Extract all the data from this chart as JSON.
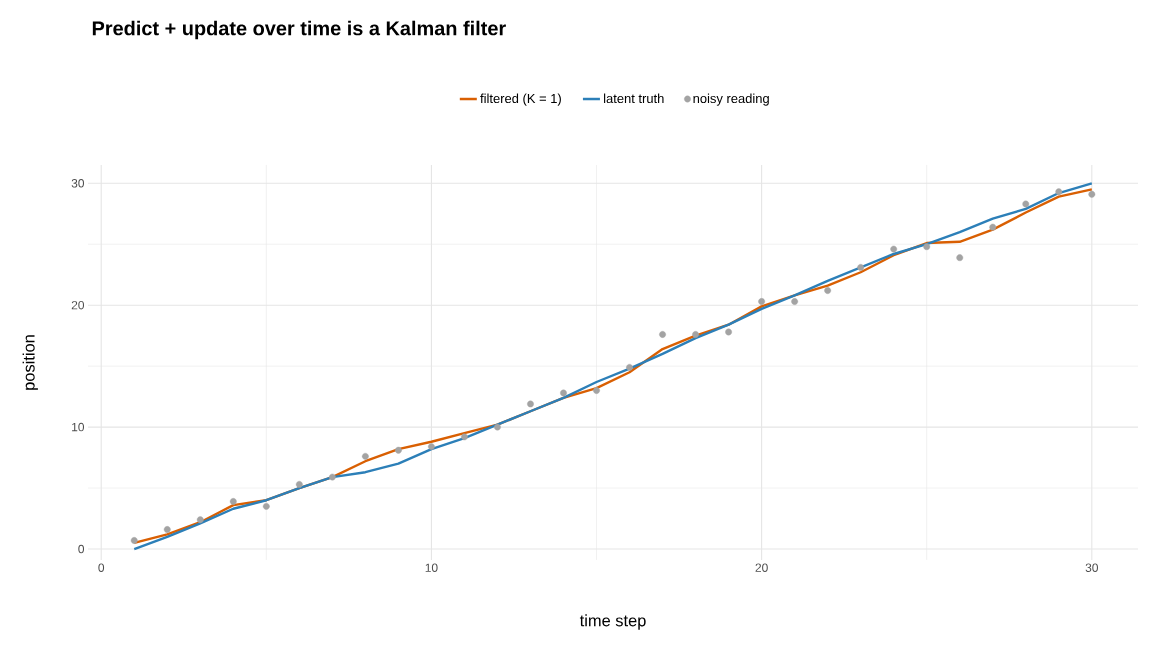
{
  "chart_data": {
    "type": "line",
    "title": "Predict + update over time is a Kalman filter",
    "xlabel": "time step",
    "ylabel": "position",
    "x": [
      1,
      2,
      3,
      4,
      5,
      6,
      7,
      8,
      9,
      10,
      11,
      12,
      13,
      14,
      15,
      16,
      17,
      18,
      19,
      20,
      21,
      22,
      23,
      24,
      25,
      26,
      27,
      28,
      29,
      30
    ],
    "series": [
      {
        "name": "filtered (K = 1)",
        "color": "#d95f02",
        "values": [
          0.5,
          1.2,
          2.2,
          3.6,
          4.0,
          5.0,
          5.9,
          7.2,
          8.2,
          8.8,
          9.5,
          10.2,
          11.3,
          12.4,
          13.2,
          14.5,
          16.4,
          17.5,
          18.4,
          19.9,
          20.8,
          21.6,
          22.7,
          24.1,
          25.1,
          25.2,
          26.2,
          27.6,
          28.9,
          29.5
        ]
      },
      {
        "name": "latent truth",
        "color": "#2c7fb8",
        "values": [
          0.0,
          1.0,
          2.1,
          3.3,
          4.0,
          5.0,
          5.9,
          6.3,
          7.0,
          8.2,
          9.1,
          10.2,
          11.3,
          12.4,
          13.7,
          14.8,
          16.0,
          17.3,
          18.4,
          19.7,
          20.8,
          22.0,
          23.1,
          24.2,
          25.0,
          26.0,
          27.1,
          27.9,
          29.2,
          30.0
        ]
      },
      {
        "name": "noisy reading",
        "type": "scatter",
        "color": "#a3a3a3",
        "marker": "circle",
        "values": [
          0.7,
          1.6,
          2.4,
          3.9,
          3.5,
          5.3,
          5.9,
          7.6,
          8.1,
          8.4,
          9.2,
          10.0,
          11.9,
          12.8,
          13.0,
          14.9,
          17.6,
          17.6,
          17.8,
          20.3,
          20.3,
          21.2,
          23.1,
          24.6,
          24.8,
          23.9,
          26.4,
          28.3,
          29.3,
          29.1
        ]
      }
    ],
    "xlim": [
      -0.4,
      31.4
    ],
    "ylim": [
      -0.9,
      31.5
    ],
    "xticks": [
      0,
      10,
      20,
      30
    ],
    "yticks": [
      0,
      10,
      20,
      30
    ],
    "grid": true,
    "legend": "top"
  }
}
